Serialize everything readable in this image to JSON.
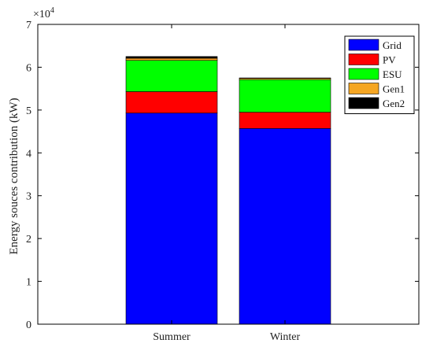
{
  "chart_data": {
    "type": "bar",
    "stacked": true,
    "categories": [
      "Summer",
      "Winter"
    ],
    "series": [
      {
        "name": "Grid",
        "color": "#0000ff",
        "values": [
          49300,
          45700
        ]
      },
      {
        "name": "PV",
        "color": "#ff0000",
        "values": [
          5000,
          3800
        ]
      },
      {
        "name": "ESU",
        "color": "#00ff00",
        "values": [
          7300,
          7600
        ]
      },
      {
        "name": "Gen1",
        "color": "#f5a623",
        "values": [
          500,
          300
        ]
      },
      {
        "name": "Gen2",
        "color": "#000000",
        "values": [
          400,
          100
        ]
      }
    ],
    "ylabel": "Energy souces contribution (kW)",
    "ylim": [
      0,
      70000
    ],
    "yticks": [
      0,
      1,
      2,
      3,
      4,
      5,
      6,
      7
    ],
    "ytick_multiplier": 10000,
    "y_exponent_label": "×10",
    "y_exponent_power": "4",
    "legend_position": "top-right",
    "grid": false
  }
}
